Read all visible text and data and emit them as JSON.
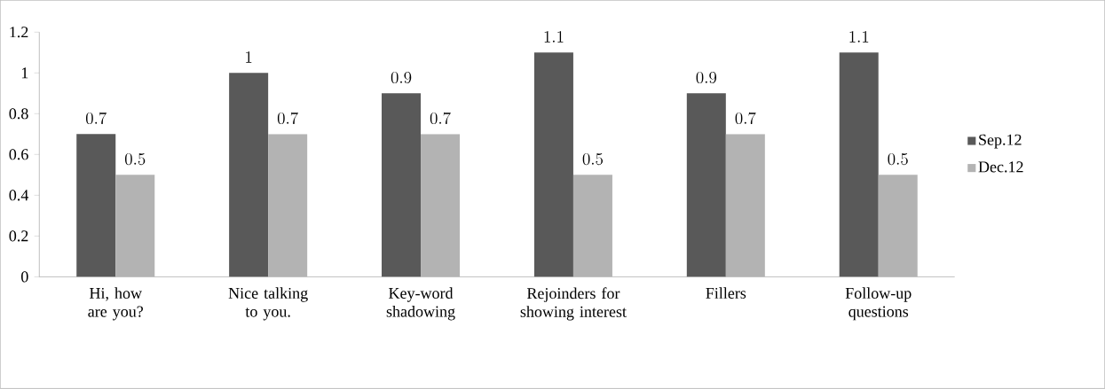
{
  "chart_data": {
    "type": "bar",
    "categories": [
      "Hi, how are you?",
      "Nice talking to you.",
      "Key-word shadowing",
      "Rejoinders for showing interest",
      "Fillers",
      "Follow-up questions"
    ],
    "series": [
      {
        "name": "Sep.12",
        "color": "#595959",
        "values": [
          0.7,
          1,
          0.9,
          1.1,
          0.9,
          1.1
        ]
      },
      {
        "name": "Dec.12",
        "color": "#b3b3b3",
        "values": [
          0.5,
          0.7,
          0.7,
          0.5,
          0.7,
          0.5
        ]
      }
    ],
    "ylim": [
      0,
      1.2
    ],
    "yticks": [
      0,
      0.2,
      0.4,
      0.6,
      0.8,
      1,
      1.2
    ],
    "data_labels": true,
    "legend": "right",
    "grid": false
  }
}
